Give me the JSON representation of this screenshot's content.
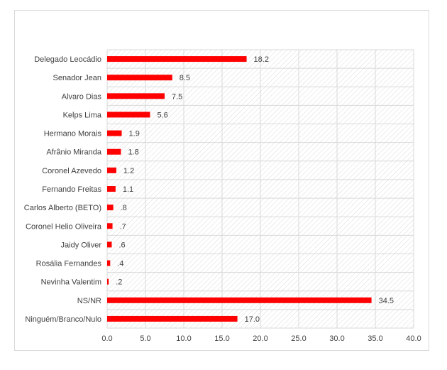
{
  "chart_data": {
    "type": "bar",
    "orientation": "horizontal",
    "categories": [
      "Delegado Leocádio",
      "Senador Jean",
      "Alvaro Dias",
      "Kelps Lima",
      "Hermano Morais",
      "Afrânio Miranda",
      "Coronel Azevedo",
      "Fernando Freitas",
      "Carlos Alberto (BETO)",
      "Coronel Helio Oliveira",
      "Jaidy Oliver",
      "Rosália Fernandes",
      "Nevinha Valentim",
      "NS/NR",
      "Ninguém/Branco/Nulo"
    ],
    "values": [
      18.2,
      8.5,
      7.5,
      5.6,
      1.9,
      1.8,
      1.2,
      1.1,
      0.8,
      0.7,
      0.6,
      0.4,
      0.2,
      34.5,
      17.0
    ],
    "data_labels": [
      "18.2",
      "8.5",
      "7.5",
      "5.6",
      "1.9",
      "1.8",
      "1.2",
      "1.1",
      ".8",
      ".7",
      ".6",
      ".4",
      ".2",
      "34.5",
      "17.0"
    ],
    "x_ticks": [
      "0.0",
      "5.0",
      "10.0",
      "15.0",
      "20.0",
      "25.0",
      "30.0",
      "35.0",
      "40.0"
    ],
    "xlim": [
      0,
      40
    ],
    "title": "",
    "xlabel": "",
    "ylabel": "",
    "grid": true,
    "legend": "none",
    "bar_color": "#ff0000",
    "plot_background": "hatched"
  }
}
